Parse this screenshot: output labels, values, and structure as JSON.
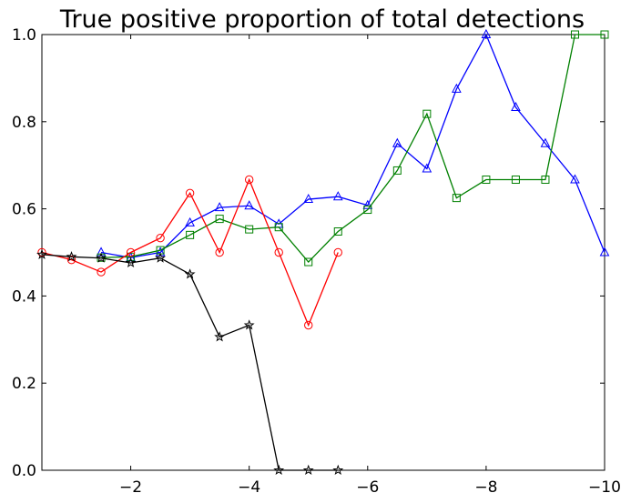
{
  "chart_data": {
    "type": "line",
    "title": "True positive proportion of total detections",
    "xlabel": "",
    "ylabel": "",
    "xlim": [
      -0.5,
      -10
    ],
    "ylim": [
      0,
      1
    ],
    "x_inverted": true,
    "grid": false,
    "legend": "none",
    "xticks": [
      -2,
      -4,
      -6,
      -8,
      -10
    ],
    "xtick_labels": [
      "−2",
      "−4",
      "−6",
      "−8",
      "−10"
    ],
    "yticks": [
      0,
      0.2,
      0.4,
      0.6,
      0.8,
      1.0
    ],
    "ytick_labels": [
      "0.0",
      "0.2",
      "0.4",
      "0.6",
      "0.8",
      "1.0"
    ],
    "series": [
      {
        "color": "#0000ff",
        "marker": "triangle",
        "x": [
          -1.5,
          -2,
          -2.5,
          -3,
          -3.5,
          -4,
          -4.5,
          -5,
          -5.5,
          -6,
          -6.5,
          -7,
          -7.5,
          -8,
          -8.5,
          -9,
          -9.5,
          -10
        ],
        "y": [
          0.5,
          0.488,
          0.5,
          0.568,
          0.603,
          0.607,
          0.565,
          0.622,
          0.628,
          0.608,
          0.75,
          0.692,
          0.875,
          1.0,
          0.833,
          0.75,
          0.667,
          0.5
        ]
      },
      {
        "color": "#008000",
        "marker": "square",
        "x": [
          -1.5,
          -2,
          -2.5,
          -3,
          -3.5,
          -4,
          -4.5,
          -5,
          -5.5,
          -6,
          -6.5,
          -7,
          -7.5,
          -8,
          -8.5,
          -9,
          -9.5,
          -10
        ],
        "y": [
          0.488,
          0.49,
          0.505,
          0.54,
          0.577,
          0.553,
          0.558,
          0.478,
          0.548,
          0.598,
          0.688,
          0.818,
          0.625,
          0.667,
          0.667,
          0.667,
          1.0,
          1.0
        ]
      },
      {
        "color": "#ff0000",
        "marker": "circle",
        "x": [
          -0.5,
          -1,
          -1.5,
          -2,
          -2.5,
          -3,
          -3.5,
          -4,
          -4.5,
          -5,
          -5.5
        ],
        "y": [
          0.5,
          0.483,
          0.455,
          0.5,
          0.533,
          0.636,
          0.5,
          0.667,
          0.5,
          0.333,
          0.5
        ]
      },
      {
        "color": "#000000",
        "marker": "star",
        "x": [
          -0.5,
          -1,
          -1.5,
          -2,
          -2.5,
          -3,
          -3.5,
          -4,
          -4.5,
          -5,
          -5.5
        ],
        "y": [
          0.495,
          0.49,
          0.487,
          0.476,
          0.487,
          0.45,
          0.306,
          0.333,
          0.0,
          0.0,
          0.0
        ]
      }
    ]
  }
}
